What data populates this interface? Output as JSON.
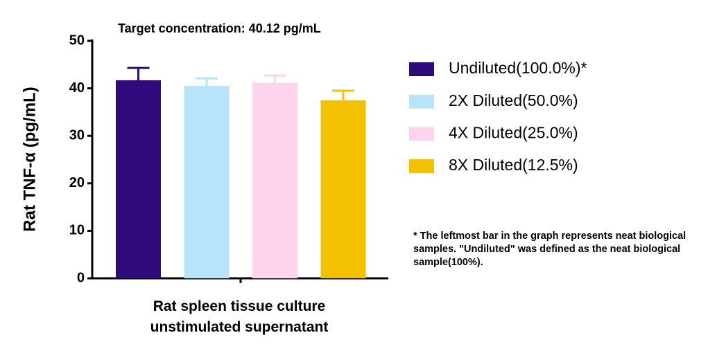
{
  "chart_data": {
    "type": "bar",
    "title": "Target concentration: 40.12 pg/mL",
    "y_label": "Rat TNF-α (pg/mL)",
    "categories": [
      "Rat spleen tissue culture unstimulated supernatant"
    ],
    "series": [
      {
        "name": "Undiluted(100.0%)*",
        "color": "#2e0a7a",
        "values": [
          41.7
        ],
        "errors": [
          2.6
        ]
      },
      {
        "name": "2X Diluted(50.0%)",
        "color": "#b8e4fa",
        "values": [
          40.5
        ],
        "errors": [
          1.6
        ]
      },
      {
        "name": "4X Diluted(25.0%)",
        "color": "#fcd4ec",
        "values": [
          41.2
        ],
        "errors": [
          1.5
        ]
      },
      {
        "name": "8X Diluted(12.5%)",
        "color": "#f2c200",
        "values": [
          37.5
        ],
        "errors": [
          2.0
        ]
      }
    ],
    "ylim": [
      0,
      50
    ],
    "yticks": [
      0,
      10,
      20,
      30,
      40,
      50
    ],
    "footnote": "* The leftmost bar in the graph represents neat biological samples. \"Undiluted\" was defined as the neat biological sample(100%)."
  }
}
